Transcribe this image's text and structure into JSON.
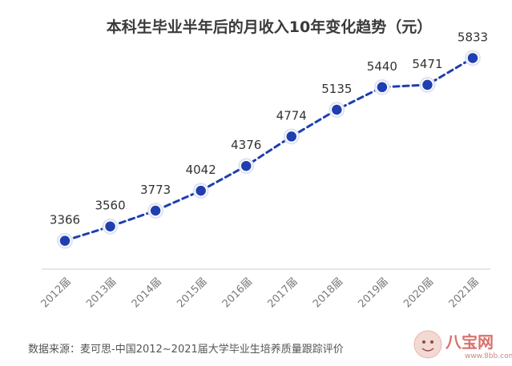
{
  "chart_data": {
    "type": "line",
    "title": "本科生毕业半年后的月收入10年变化趋势（元）",
    "categories": [
      "2012届",
      "2013届",
      "2014届",
      "2015届",
      "2016届",
      "2017届",
      "2018届",
      "2019届",
      "2020届",
      "2021届"
    ],
    "values": [
      3366,
      3560,
      3773,
      4042,
      4376,
      4774,
      5135,
      5440,
      5471,
      5833
    ],
    "value_labels": [
      "3366",
      "3560",
      "3773",
      "4042",
      "4376",
      "4774",
      "5135",
      "5440",
      "5471",
      "5833"
    ],
    "xlabel": "",
    "ylabel": "",
    "ylim": [
      2400,
      6400
    ],
    "grid": false,
    "line_style": "dashed",
    "colors": {
      "line": "#1f3fae",
      "marker": "#1f3fae",
      "marker_ring": "#dfe4f2",
      "axis": "#d8d8d8"
    }
  },
  "source": "数据来源：麦可思-中国2012~2021届大学毕业生培养质量跟踪评价",
  "watermark": {
    "text": "八宝网",
    "url": "www.8bb.com",
    "color": "#d9716b"
  }
}
